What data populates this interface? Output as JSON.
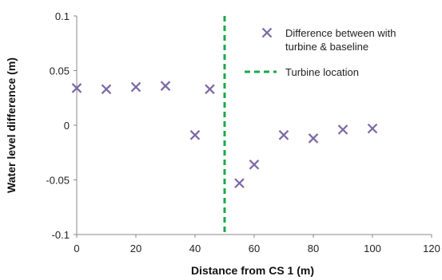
{
  "chart_data": {
    "type": "scatter",
    "title": "",
    "xlabel": "Distance from CS 1 (m)",
    "ylabel": "Water level difference (m)",
    "xlim": [
      0,
      120
    ],
    "ylim": [
      -0.1,
      0.1
    ],
    "x_ticks": [
      0,
      20,
      40,
      60,
      80,
      100,
      120
    ],
    "x_tick_labels": [
      "0",
      "20",
      "40",
      "60",
      "80",
      "100",
      "120"
    ],
    "y_ticks": [
      0.1,
      0.05,
      0,
      -0.05,
      -0.1
    ],
    "y_tick_labels": [
      "0.1",
      "0.05",
      "0",
      "-0.05",
      "-0.1"
    ],
    "grid": false,
    "legend_position": "top-right",
    "series": [
      {
        "name_lines": [
          "Difference between with",
          "turbine & baseline"
        ],
        "marker": "x",
        "color": "#7b68a6",
        "x": [
          0,
          10,
          20,
          30,
          40,
          45,
          55,
          60,
          70,
          80,
          90,
          100
        ],
        "y": [
          0.034,
          0.033,
          0.035,
          0.036,
          -0.009,
          0.033,
          -0.053,
          -0.036,
          -0.009,
          -0.012,
          -0.004,
          -0.003
        ]
      }
    ],
    "reference_lines": [
      {
        "name": "Turbine location",
        "orientation": "vertical",
        "x": 50,
        "style": "dashed",
        "color": "#1aa84a"
      }
    ]
  }
}
